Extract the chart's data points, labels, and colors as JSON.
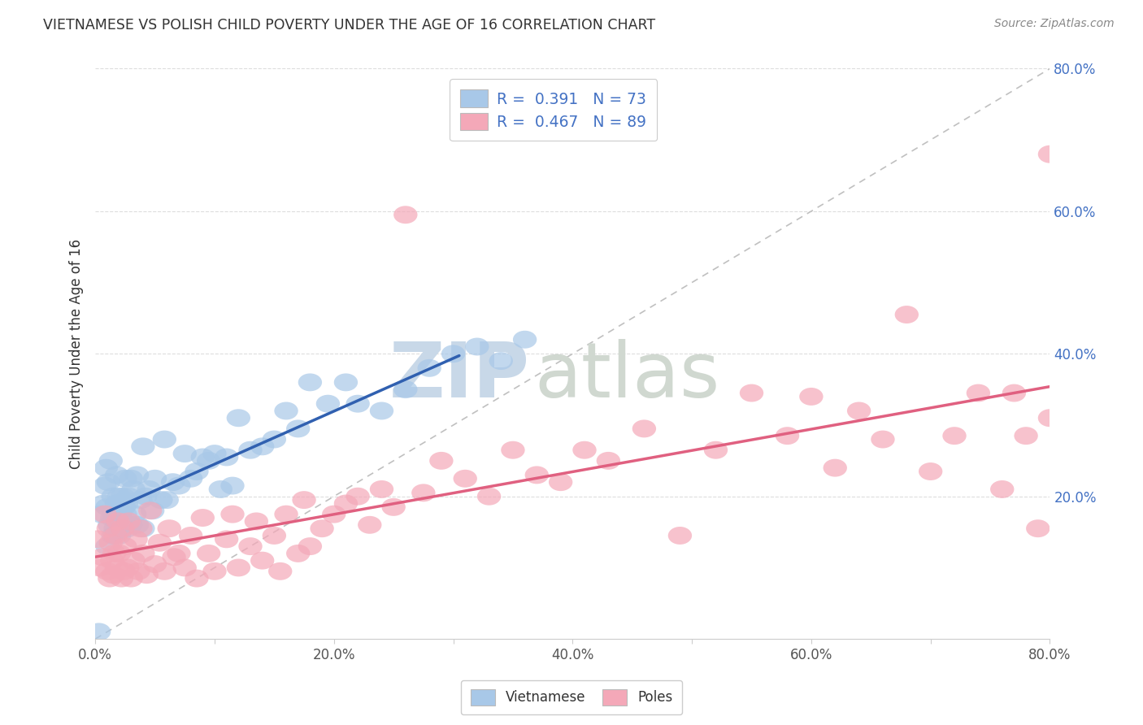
{
  "title": "VIETNAMESE VS POLISH CHILD POVERTY UNDER THE AGE OF 16 CORRELATION CHART",
  "source": "Source: ZipAtlas.com",
  "ylabel": "Child Poverty Under the Age of 16",
  "xlim": [
    0.0,
    0.8
  ],
  "ylim": [
    0.0,
    0.8
  ],
  "xtick_labels": [
    "0.0%",
    "",
    "20.0%",
    "",
    "40.0%",
    "",
    "60.0%",
    "",
    "80.0%"
  ],
  "xtick_vals": [
    0.0,
    0.1,
    0.2,
    0.3,
    0.4,
    0.5,
    0.6,
    0.7,
    0.8
  ],
  "ytick_labels": [
    "20.0%",
    "40.0%",
    "60.0%",
    "80.0%"
  ],
  "ytick_vals": [
    0.2,
    0.4,
    0.6,
    0.8
  ],
  "legend_label1": "Vietnamese",
  "legend_label2": "Poles",
  "color_vietnamese": "#a8c8e8",
  "color_poles": "#f4a8b8",
  "color_trendline_vietnamese": "#3060b0",
  "color_trendline_poles": "#e06080",
  "color_diagonal": "#c0c0c0",
  "color_ytick": "#4472c4",
  "color_xtick": "#555555",
  "color_legend_text": "#4472c4",
  "color_title": "#333333",
  "background_color": "#ffffff",
  "grid_color": "#dddddd",
  "watermark_zip_color": "#c8d8e8",
  "watermark_atlas_color": "#d0d8d0"
}
